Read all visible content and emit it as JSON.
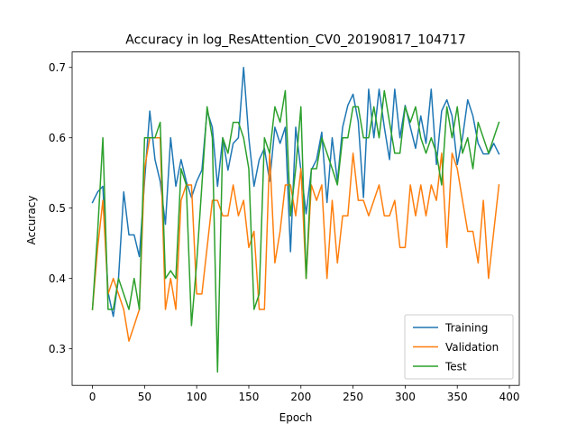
{
  "chart_data": {
    "type": "line",
    "title": "Accuracy in log_ResAttention_CV0_20190817_104717",
    "xlabel": "Epoch",
    "ylabel": "Accuracy",
    "xlim": [
      -19.5,
      409.5
    ],
    "ylim": [
      0.248,
      0.722
    ],
    "xticks": [
      0,
      50,
      100,
      150,
      200,
      250,
      300,
      350,
      400
    ],
    "yticks": [
      0.3,
      0.4,
      0.5,
      0.6,
      0.7
    ],
    "grid": false,
    "legend_position": "lower-right",
    "series": [
      {
        "name": "Training",
        "color": "#1f77b4",
        "x": [
          0,
          5,
          10,
          15,
          20,
          25,
          30,
          35,
          40,
          45,
          50,
          55,
          60,
          65,
          70,
          75,
          80,
          85,
          90,
          95,
          100,
          105,
          110,
          115,
          120,
          125,
          130,
          135,
          140,
          145,
          150,
          155,
          160,
          165,
          170,
          175,
          180,
          185,
          190,
          195,
          200,
          205,
          210,
          215,
          220,
          225,
          230,
          235,
          240,
          245,
          250,
          255,
          260,
          265,
          270,
          275,
          280,
          285,
          290,
          295,
          300,
          305,
          310,
          315,
          320,
          325,
          330,
          335,
          340,
          345,
          350,
          355,
          360,
          365,
          370,
          375,
          380,
          385,
          390
        ],
        "y": [
          0.508,
          0.523,
          0.531,
          0.38,
          0.346,
          0.4,
          0.523,
          0.462,
          0.462,
          0.431,
          0.538,
          0.638,
          0.569,
          0.538,
          0.477,
          0.6,
          0.531,
          0.569,
          0.538,
          0.515,
          0.538,
          0.554,
          0.638,
          0.615,
          0.531,
          0.6,
          0.554,
          0.592,
          0.6,
          0.7,
          0.6,
          0.531,
          0.569,
          0.585,
          0.538,
          0.615,
          0.592,
          0.615,
          0.438,
          0.615,
          0.554,
          0.492,
          0.554,
          0.569,
          0.608,
          0.508,
          0.6,
          0.538,
          0.615,
          0.646,
          0.662,
          0.623,
          0.515,
          0.669,
          0.6,
          0.669,
          0.615,
          0.569,
          0.669,
          0.6,
          0.646,
          0.615,
          0.585,
          0.631,
          0.592,
          0.669,
          0.562,
          0.638,
          0.654,
          0.631,
          0.562,
          0.6,
          0.654,
          0.631,
          0.592,
          0.577,
          0.577,
          0.592,
          0.577
        ]
      },
      {
        "name": "Validation",
        "color": "#ff7f0e",
        "x": [
          0,
          5,
          10,
          15,
          20,
          25,
          30,
          35,
          40,
          45,
          50,
          55,
          60,
          65,
          70,
          75,
          80,
          85,
          90,
          95,
          100,
          105,
          110,
          115,
          120,
          125,
          130,
          135,
          140,
          145,
          150,
          155,
          160,
          165,
          170,
          175,
          180,
          185,
          190,
          195,
          200,
          205,
          210,
          215,
          220,
          225,
          230,
          235,
          240,
          245,
          250,
          255,
          260,
          265,
          270,
          275,
          280,
          285,
          290,
          295,
          300,
          305,
          310,
          315,
          320,
          325,
          330,
          335,
          340,
          345,
          350,
          355,
          360,
          365,
          370,
          375,
          380,
          385,
          390
        ],
        "y": [
          0.356,
          0.444,
          0.511,
          0.378,
          0.4,
          0.378,
          0.356,
          0.311,
          0.333,
          0.356,
          0.556,
          0.6,
          0.6,
          0.6,
          0.356,
          0.4,
          0.356,
          0.511,
          0.533,
          0.533,
          0.378,
          0.378,
          0.444,
          0.511,
          0.511,
          0.489,
          0.489,
          0.533,
          0.489,
          0.511,
          0.444,
          0.467,
          0.356,
          0.356,
          0.578,
          0.422,
          0.467,
          0.533,
          0.533,
          0.489,
          0.556,
          0.4,
          0.533,
          0.511,
          0.533,
          0.4,
          0.511,
          0.422,
          0.489,
          0.489,
          0.578,
          0.511,
          0.511,
          0.489,
          0.511,
          0.533,
          0.489,
          0.489,
          0.511,
          0.444,
          0.444,
          0.533,
          0.489,
          0.533,
          0.489,
          0.533,
          0.511,
          0.578,
          0.444,
          0.578,
          0.556,
          0.511,
          0.467,
          0.467,
          0.422,
          0.511,
          0.4,
          0.467,
          0.533
        ]
      },
      {
        "name": "Test",
        "color": "#2ca02c",
        "x": [
          0,
          5,
          10,
          15,
          20,
          25,
          30,
          35,
          40,
          45,
          50,
          55,
          60,
          65,
          70,
          75,
          80,
          85,
          90,
          95,
          100,
          105,
          110,
          115,
          120,
          125,
          130,
          135,
          140,
          145,
          150,
          155,
          160,
          165,
          170,
          175,
          180,
          185,
          190,
          195,
          200,
          205,
          210,
          215,
          220,
          225,
          230,
          235,
          240,
          245,
          250,
          255,
          260,
          265,
          270,
          275,
          280,
          285,
          290,
          295,
          300,
          305,
          310,
          315,
          320,
          325,
          330,
          335,
          340,
          345,
          350,
          355,
          360,
          365,
          370,
          375,
          380,
          385,
          390
        ],
        "y": [
          0.356,
          0.467,
          0.6,
          0.356,
          0.356,
          0.4,
          0.378,
          0.356,
          0.4,
          0.356,
          0.6,
          0.6,
          0.6,
          0.622,
          0.4,
          0.411,
          0.4,
          0.556,
          0.533,
          0.333,
          0.422,
          0.533,
          0.644,
          0.6,
          0.267,
          0.6,
          0.578,
          0.622,
          0.622,
          0.6,
          0.556,
          0.356,
          0.378,
          0.6,
          0.578,
          0.644,
          0.622,
          0.667,
          0.489,
          0.556,
          0.644,
          0.4,
          0.556,
          0.556,
          0.6,
          0.578,
          0.556,
          0.533,
          0.6,
          0.6,
          0.644,
          0.644,
          0.6,
          0.6,
          0.644,
          0.6,
          0.667,
          0.622,
          0.578,
          0.578,
          0.644,
          0.622,
          0.644,
          0.6,
          0.578,
          0.6,
          0.578,
          0.533,
          0.644,
          0.6,
          0.644,
          0.578,
          0.6,
          0.556,
          0.622,
          0.6,
          0.578,
          0.6,
          0.622
        ]
      }
    ]
  }
}
